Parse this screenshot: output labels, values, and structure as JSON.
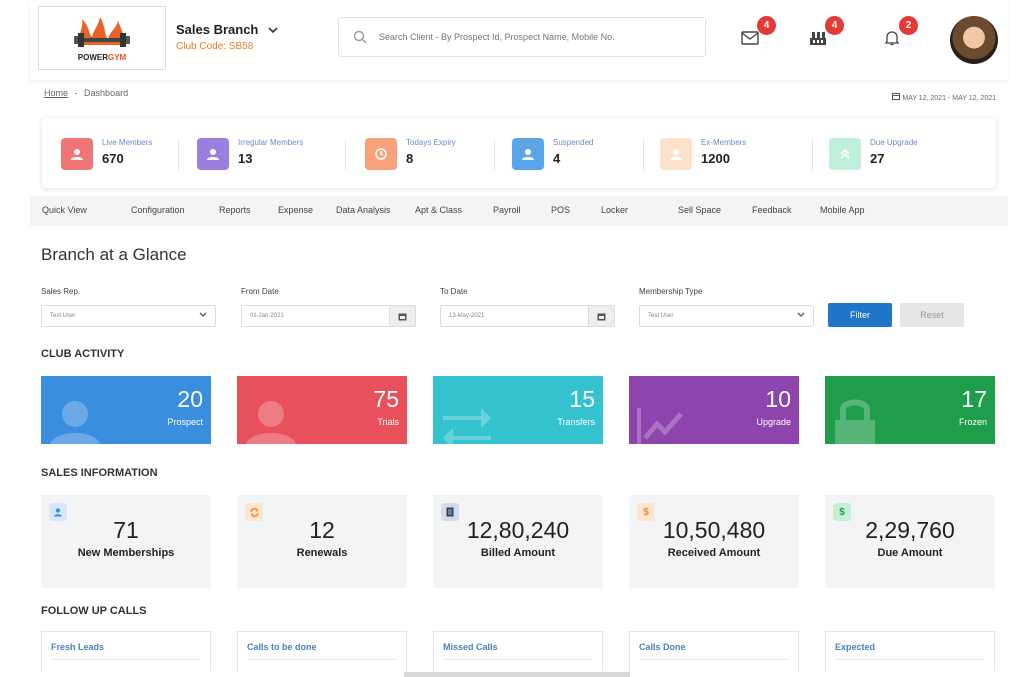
{
  "header": {
    "logo": {
      "text_main": "POWER",
      "text_accent": "GYM"
    },
    "branch_name": "Sales Branch",
    "club_code": "Club Code: SB58",
    "search_placeholder": "Search Client - By Prospect Id, Prospect Name, Mobile No.",
    "badges": {
      "mail": "4",
      "building": "4",
      "bell": "2"
    }
  },
  "breadcrumb": {
    "home": "Home",
    "separator": "-",
    "current": "Dashboard"
  },
  "date_range": "MAY 12, 2021 - MAY 12, 2021",
  "stats": [
    {
      "label": "Live Members",
      "value": "670",
      "color": "#f07577"
    },
    {
      "label": "Irregular Members",
      "value": "13",
      "color": "#9a7fe0"
    },
    {
      "label": "Todays Expiry",
      "value": "8",
      "color": "#f7a27a"
    },
    {
      "label": "Suspended",
      "value": "4",
      "color": "#5aa6e8"
    },
    {
      "label": "Ex-Members",
      "value": "1200",
      "color": "#fde3cc"
    },
    {
      "label": "Due Upgrade",
      "value": "27",
      "color": "#bff0dc"
    }
  ],
  "menu": [
    "Quick View",
    "Configuration",
    "Reports",
    "Expense",
    "Data Analysis",
    "Apt & Class",
    "Payroll",
    "POS",
    "Locker",
    "Sell Space",
    "Feedback",
    "Mobile App"
  ],
  "glance": {
    "title": "Branch at a Glance",
    "sales_rep_label": "Sales Rep.",
    "sales_rep_value": "Test User",
    "from_label": "From Date",
    "from_value": "01-Jan-2021",
    "to_label": "To Date",
    "to_value": "13-May-2021",
    "type_label": "Membership Type",
    "type_value": "Test User",
    "filter": "Filter",
    "reset": "Reset"
  },
  "club_activity": {
    "heading": "CLUB ACTIVITY",
    "tiles": [
      {
        "value": "20",
        "label": "Prospect",
        "color": "#3a8ee0",
        "icon": "user-icon"
      },
      {
        "value": "75",
        "label": "Trials",
        "color": "#e8505b",
        "icon": "user-icon"
      },
      {
        "value": "15",
        "label": "Transfers",
        "color": "#36c3d0",
        "icon": "transfer-arrows-icon"
      },
      {
        "value": "10",
        "label": "Upgrade",
        "color": "#8e44ad",
        "icon": "trending-up-icon"
      },
      {
        "value": "17",
        "label": "Frozen",
        "color": "#1e9e4a",
        "icon": "lock-icon"
      }
    ]
  },
  "sales": {
    "heading": "SALES INFORMATION",
    "cards": [
      {
        "value": "71",
        "label": "New Memberships",
        "icon": "user-icon",
        "icon_color": "#3a8ee0",
        "icon_bg": "#d8e8fa"
      },
      {
        "value": "12",
        "label": "Renewals",
        "icon": "refresh-icon",
        "icon_color": "#f08a24",
        "icon_bg": "#fde6cf"
      },
      {
        "value": "12,80,240",
        "label": "Billed Amount",
        "icon": "document-icon",
        "icon_color": "#2c3e70",
        "icon_bg": "#d5dbea"
      },
      {
        "value": "10,50,480",
        "label": "Received Amount",
        "icon": "dollar-icon",
        "icon_color": "#f08a24",
        "icon_bg": "#fde6cf",
        "glyph": "$"
      },
      {
        "value": "2,29,760",
        "label": "Due Amount",
        "icon": "dollar-icon",
        "icon_color": "#1e9e4a",
        "icon_bg": "#c8eed6",
        "glyph": "$"
      }
    ]
  },
  "followup": {
    "heading": "FOLLOW UP CALLS",
    "cards": [
      "Fresh Leads",
      "Calls to be done",
      "Missed Calls",
      "Calls Done",
      "Expected"
    ]
  }
}
